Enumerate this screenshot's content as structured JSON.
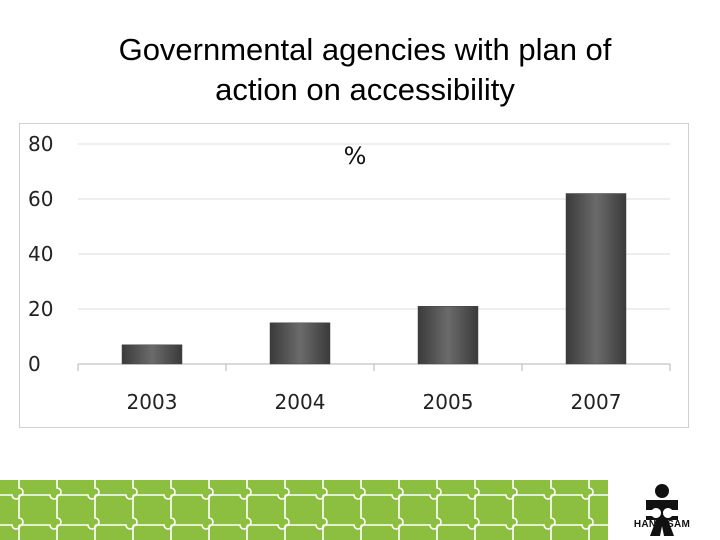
{
  "slide": {
    "title_line1": "Governmental agencies with plan of",
    "title_line2": "action on accessibility"
  },
  "chart_data": {
    "type": "bar",
    "title": "%",
    "categories": [
      "2003",
      "2004",
      "2005",
      "2007"
    ],
    "values": [
      7,
      15,
      21,
      62
    ],
    "ylim": [
      0,
      80
    ],
    "yticks": [
      0,
      20,
      40,
      60,
      80
    ],
    "xlabel": "",
    "ylabel": "",
    "grid": true,
    "bar_color": "#5a5a5a"
  },
  "footer": {
    "brand": "HANDISAM",
    "band_color": "#8cbf3f",
    "logo_icon": "puzzle-figure-icon"
  }
}
